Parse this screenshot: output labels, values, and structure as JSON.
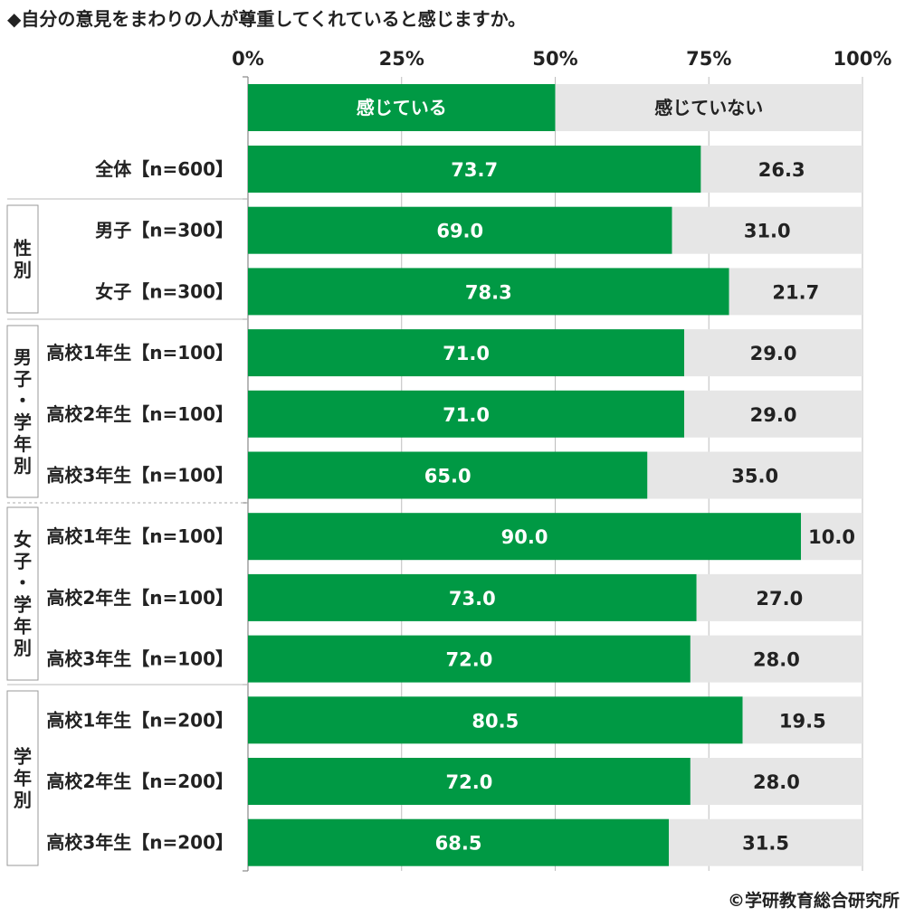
{
  "title": "◆自分の意見をまわりの人が尊重してくれていると感じますか。",
  "copyright": "©学研教育総合研究所",
  "colors": {
    "felt": "#009944",
    "not_felt": "#e6e6e6"
  },
  "chart_data": {
    "type": "bar",
    "orientation": "horizontal",
    "stacked": "100%",
    "xlim": [
      0,
      100
    ],
    "x_ticks": [
      "0%",
      "25%",
      "50%",
      "75%",
      "100%"
    ],
    "legend": {
      "placement": "top",
      "values": [
        50,
        50
      ]
    },
    "series": [
      {
        "name": "感じている",
        "values": [
          73.7,
          69.0,
          78.3,
          71.0,
          71.0,
          65.0,
          90.0,
          73.0,
          72.0,
          80.5,
          72.0,
          68.5
        ]
      },
      {
        "name": "感じていない",
        "values": [
          26.3,
          31.0,
          21.7,
          29.0,
          29.0,
          35.0,
          10.0,
          27.0,
          28.0,
          19.5,
          28.0,
          31.5
        ]
      }
    ],
    "categories": [
      "全体【n=600】",
      "男子【n=300】",
      "女子【n=300】",
      "高校1年生【n=100】",
      "高校2年生【n=100】",
      "高校3年生【n=100】",
      "高校1年生【n=100】",
      "高校2年生【n=100】",
      "高校3年生【n=100】",
      "高校1年生【n=200】",
      "高校2年生【n=200】",
      "高校3年生【n=200】"
    ],
    "groups": [
      {
        "label": "性別",
        "rows": [
          1,
          2
        ]
      },
      {
        "label": "男子・学年別",
        "rows": [
          3,
          4,
          5
        ]
      },
      {
        "label": "女子・学年別",
        "rows": [
          6,
          7,
          8
        ]
      },
      {
        "label": "学年別",
        "rows": [
          9,
          10,
          11
        ]
      }
    ]
  }
}
